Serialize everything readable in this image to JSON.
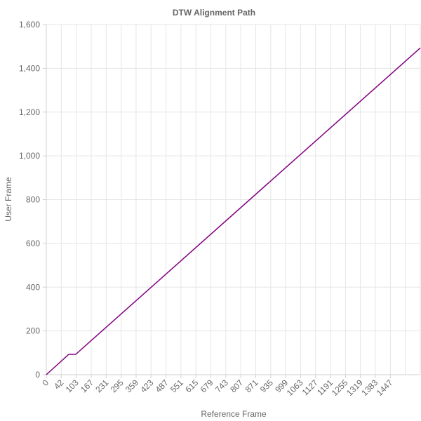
{
  "chart_data": {
    "type": "line",
    "title": "DTW Alignment Path",
    "xlabel": "Reference Frame",
    "ylabel": "User Frame",
    "xlim": [
      0,
      1500
    ],
    "ylim": [
      0,
      1600
    ],
    "x_ticks": [
      "0",
      "42",
      "103",
      "167",
      "231",
      "295",
      "359",
      "423",
      "487",
      "551",
      "615",
      "679",
      "743",
      "807",
      "871",
      "935",
      "999",
      "1063",
      "1127",
      "1191",
      "1255",
      "1319",
      "1383",
      "1447"
    ],
    "y_ticks": [
      "0",
      "200",
      "400",
      "600",
      "800",
      "1,000",
      "1,200",
      "1,400",
      "1,600"
    ],
    "grid": true,
    "legend": "none",
    "series": [
      {
        "color": "#800080",
        "points": [
          [
            0,
            0
          ],
          [
            90,
            93
          ],
          [
            118,
            93
          ],
          [
            1500,
            1493
          ]
        ]
      }
    ]
  }
}
